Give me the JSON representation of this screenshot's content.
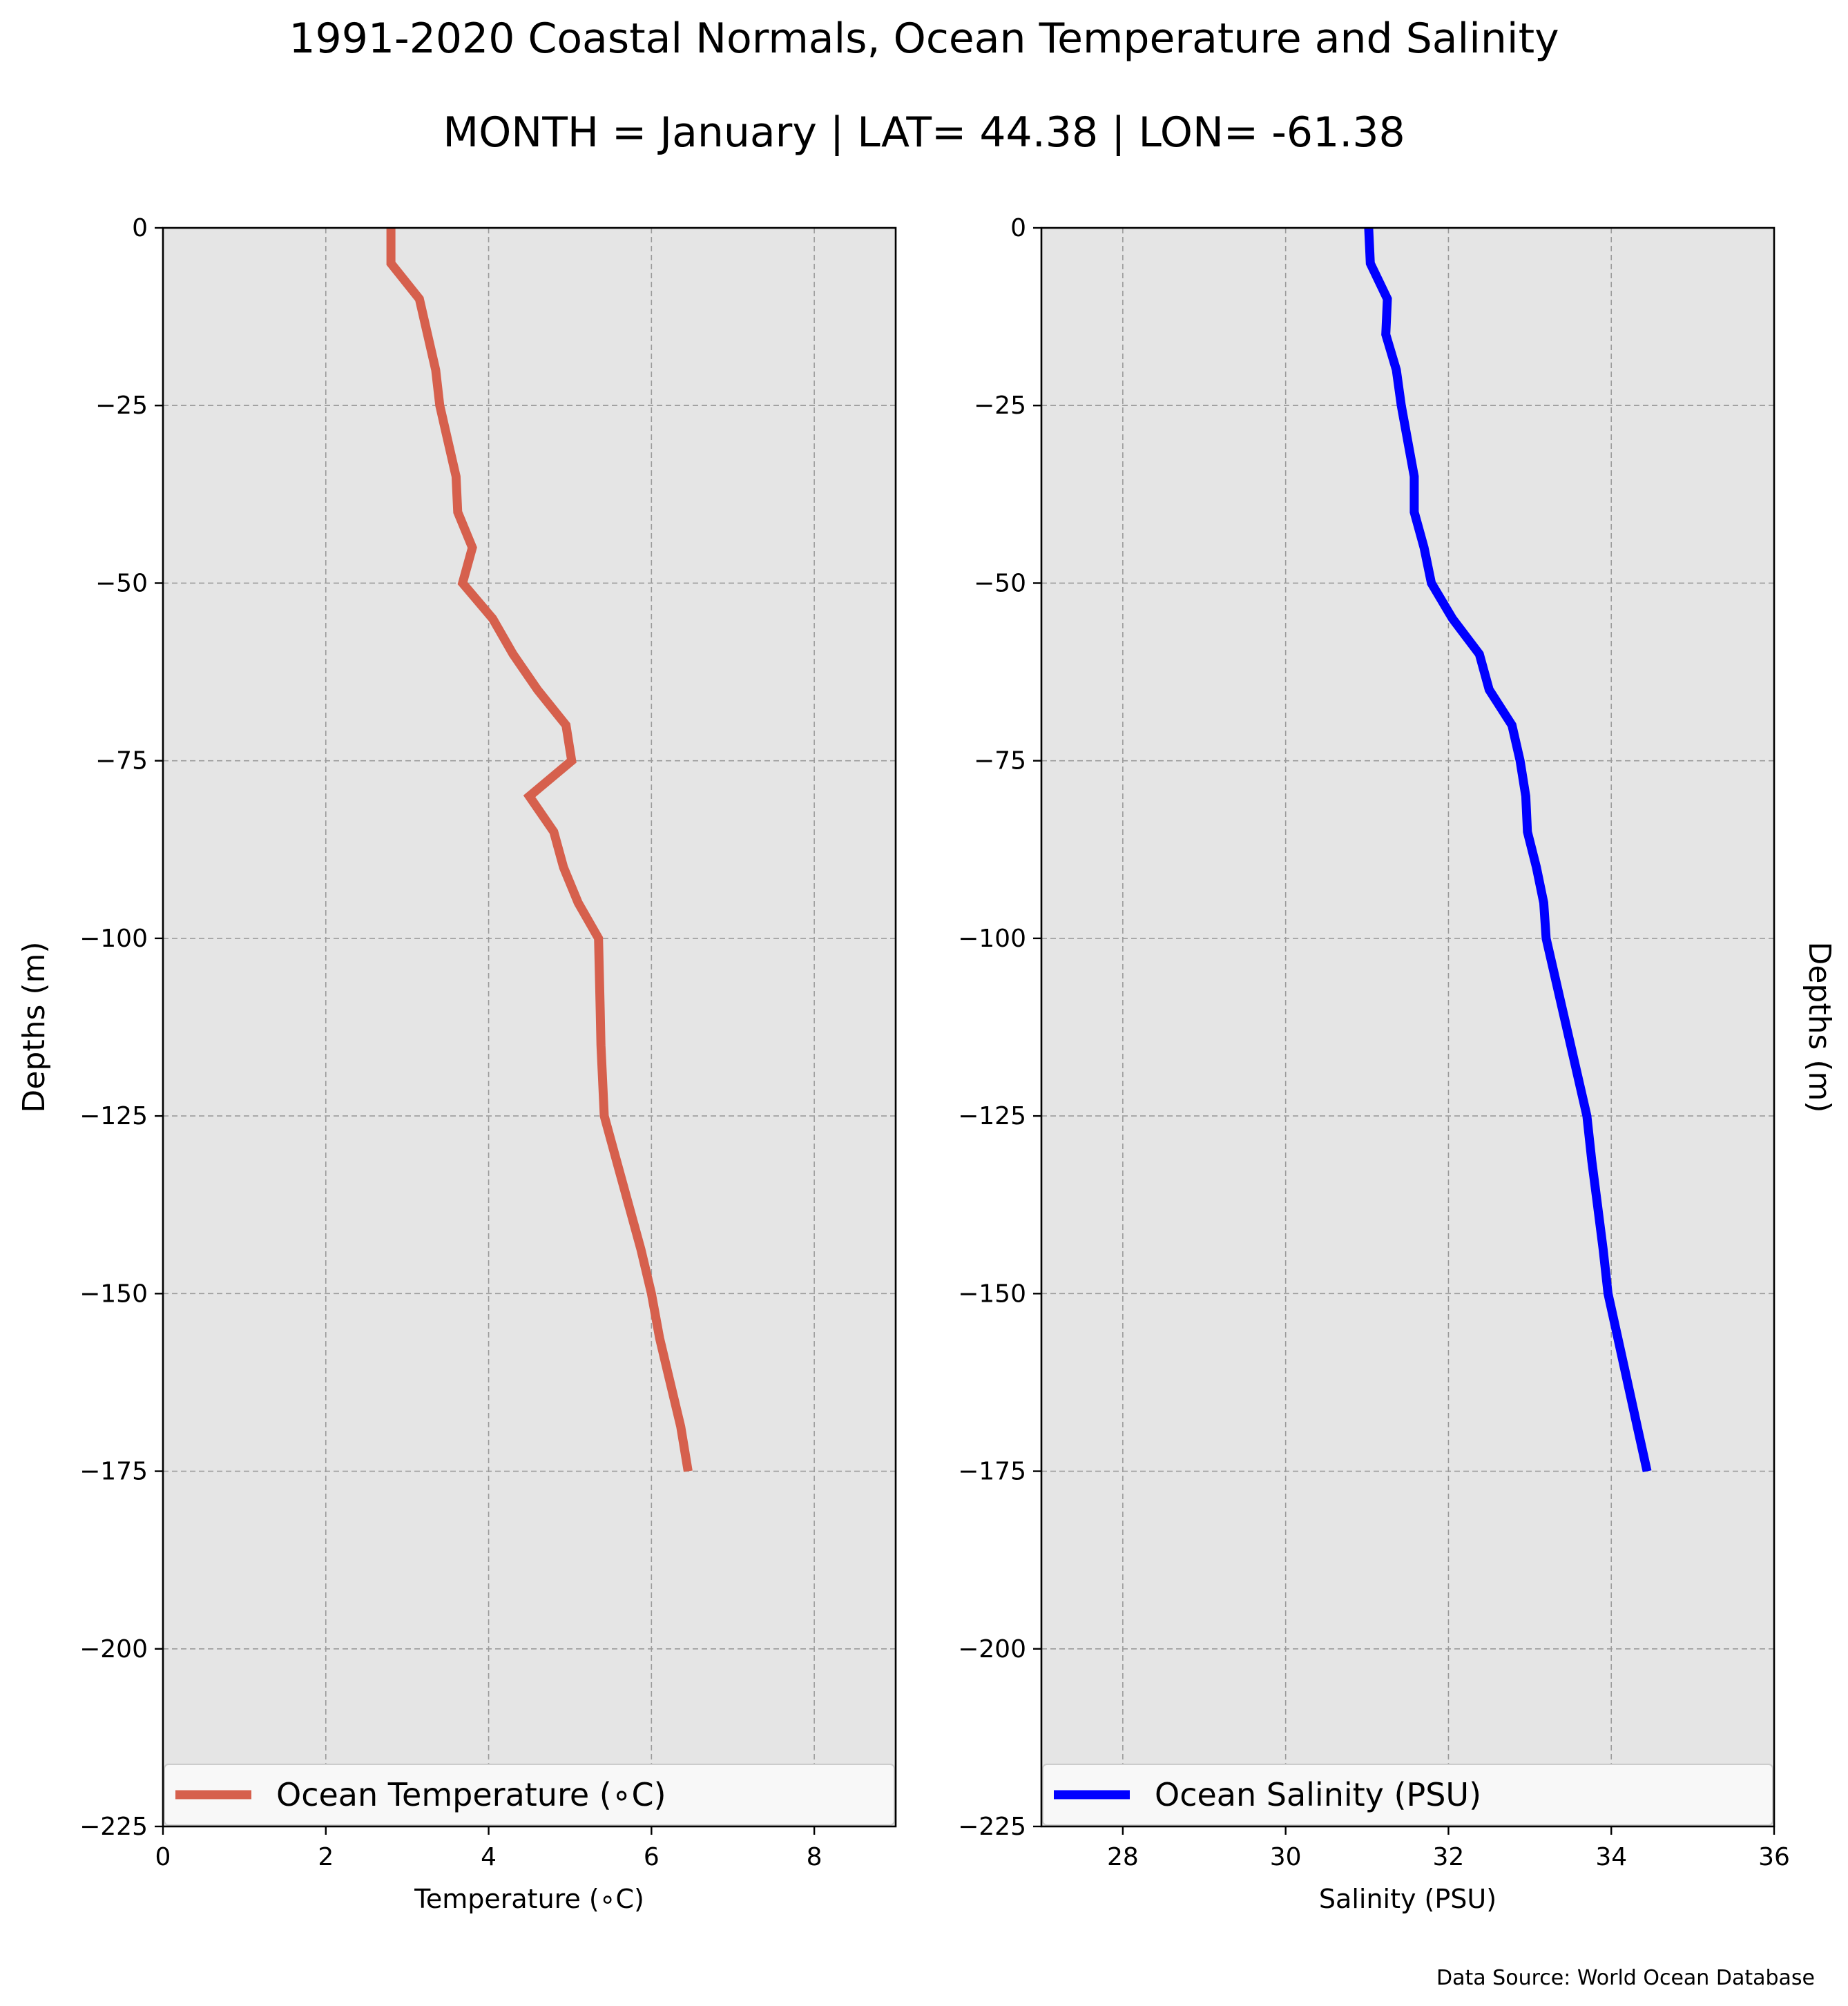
{
  "title": "1991-2020 Coastal Normals, Ocean Temperature and Salinity",
  "subtitle": "MONTH = January | LAT= 44.38 | LON= -61.38",
  "source": "Data Source: World Ocean Database",
  "chart_data": [
    {
      "type": "line",
      "xlabel": "Temperature (∘C)",
      "ylabel": "Depths (m)",
      "xlim": [
        0,
        9
      ],
      "ylim": [
        -225,
        0
      ],
      "xticks": [
        0,
        2,
        4,
        6,
        8
      ],
      "xtick_labels": [
        "0",
        "2",
        "4",
        "6",
        "8"
      ],
      "yticks": [
        0,
        -25,
        -50,
        -75,
        -100,
        -125,
        -150,
        -175,
        -200,
        -225
      ],
      "ytick_labels": [
        "0",
        "−25",
        "−50",
        "−75",
        "−100",
        "−125",
        "−150",
        "−175",
        "−200",
        "−225"
      ],
      "grid": true,
      "legend_position": "bottom",
      "color": "#d6604d",
      "series": [
        {
          "name": "Ocean Temperature (∘C)",
          "x": [
            2.8,
            2.8,
            3.15,
            3.25,
            3.35,
            3.4,
            3.5,
            3.6,
            3.62,
            3.8,
            3.68,
            4.05,
            4.3,
            4.6,
            4.95,
            5.02,
            4.5,
            4.8,
            4.92,
            5.1,
            5.35,
            5.36,
            5.37,
            5.38,
            5.42,
            5.57,
            5.72,
            5.87,
            6.0,
            6.1,
            6.23,
            6.36,
            6.45
          ],
          "y": [
            0,
            -5,
            -10,
            -15,
            -20,
            -25,
            -30,
            -35,
            -40,
            -45,
            -50,
            -55,
            -60,
            -65,
            -70,
            -75,
            -80,
            -85,
            -90,
            -95,
            -100,
            -105,
            -110,
            -115,
            -125,
            -131.25,
            -137.5,
            -143.75,
            -150,
            -156.25,
            -162.5,
            -168.75,
            -175
          ]
        }
      ]
    },
    {
      "type": "line",
      "xlabel": "Salinity (PSU)",
      "ylabel": "Depths (m)",
      "xlim": [
        27,
        36
      ],
      "ylim": [
        -225,
        0
      ],
      "xticks": [
        28,
        30,
        32,
        34,
        36
      ],
      "xtick_labels": [
        "28",
        "30",
        "32",
        "34",
        "36"
      ],
      "yticks": [
        0,
        -25,
        -50,
        -75,
        -100,
        -125,
        -150,
        -175,
        -200,
        -225
      ],
      "ytick_labels": [
        "0",
        "−25",
        "−50",
        "−75",
        "−100",
        "−125",
        "−150",
        "−175",
        "−200",
        "−225"
      ],
      "grid": true,
      "legend_position": "bottom",
      "color": "#0000ff",
      "series": [
        {
          "name": "Ocean Salinity (PSU)",
          "x": [
            31.02,
            31.04,
            31.25,
            31.23,
            31.36,
            31.42,
            31.5,
            31.58,
            31.58,
            31.7,
            31.79,
            32.05,
            32.38,
            32.5,
            32.78,
            32.88,
            32.95,
            32.97,
            33.08,
            33.17,
            33.2,
            33.3,
            33.4,
            33.5,
            33.7,
            33.76,
            33.83,
            33.9,
            33.96,
            34.08,
            34.2,
            34.32,
            34.44
          ],
          "y": [
            0,
            -5,
            -10,
            -15,
            -20,
            -25,
            -30,
            -35,
            -40,
            -45,
            -50,
            -55,
            -60,
            -65,
            -70,
            -75,
            -80,
            -85,
            -90,
            -95,
            -100,
            -105,
            -110,
            -115,
            -125,
            -131.25,
            -137.5,
            -143.75,
            -150,
            -156.25,
            -162.5,
            -168.75,
            -175
          ]
        }
      ]
    }
  ]
}
